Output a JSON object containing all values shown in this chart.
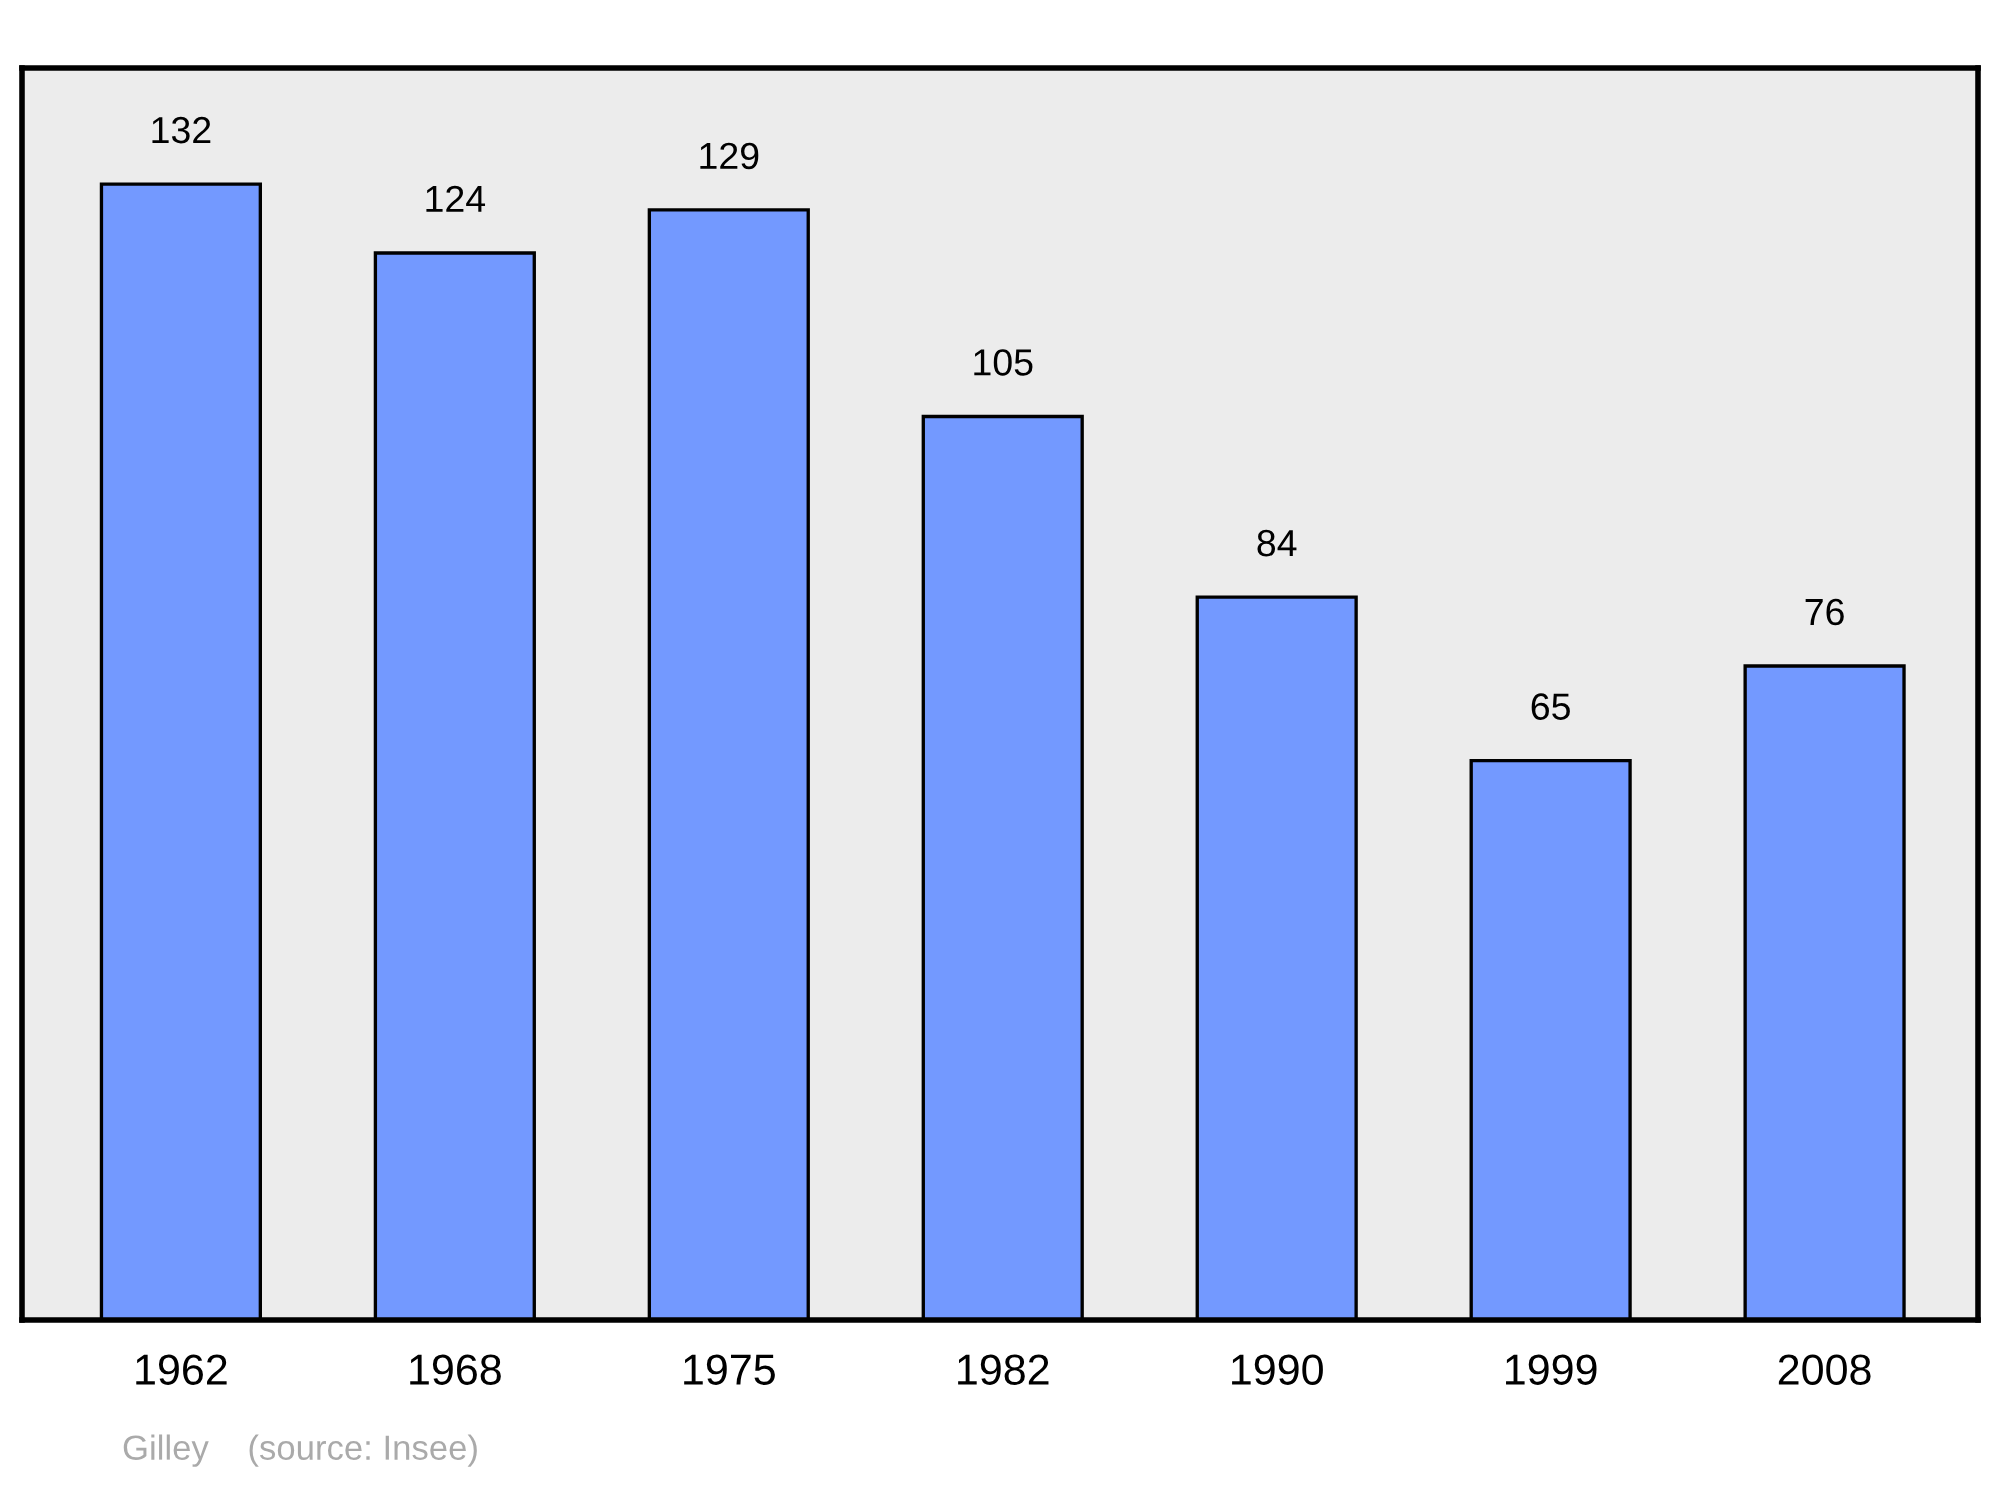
{
  "chart_data": {
    "type": "bar",
    "categories": [
      "1962",
      "1968",
      "1975",
      "1982",
      "1990",
      "1999",
      "2008"
    ],
    "values": [
      132,
      124,
      129,
      105,
      84,
      65,
      76
    ],
    "color": "#7399ff",
    "ylim": [
      0,
      145.5
    ],
    "data_labels": true,
    "grid": false,
    "annotations": [
      "Gilley    (source: Insee)"
    ]
  }
}
